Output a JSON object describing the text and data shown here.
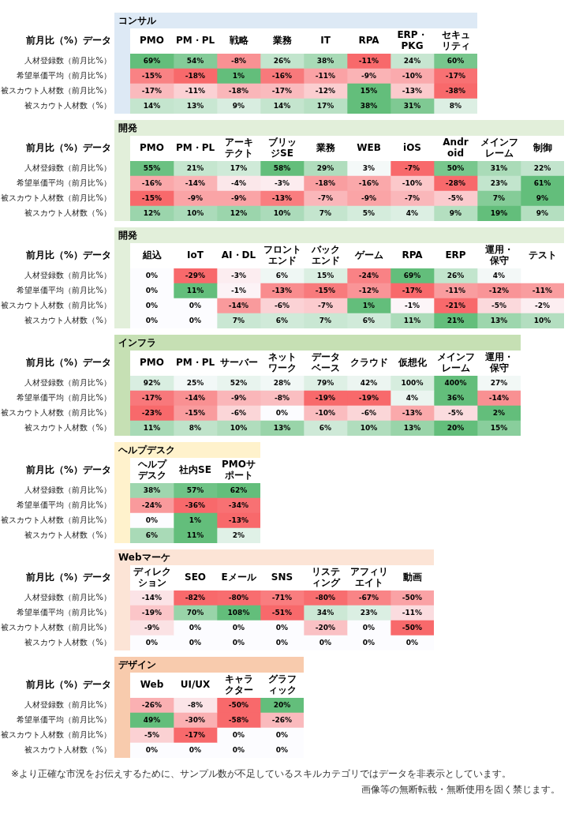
{
  "chart_data": [
    {
      "type": "heatmap",
      "title": "コンサル",
      "ylabel": "前月比（%）データ",
      "color": "#dde9f5",
      "categories": [
        "PMO",
        "PM・PL",
        "戦略",
        "業務",
        "IT",
        "RPA",
        "ERP・PKG",
        "セキュリティ"
      ],
      "y_categories": [
        "人材登録数（前月比%）",
        "希望単価平均（前月比%）",
        "被スカウト人材数（前月比%）",
        "被スカウト人材数（%）"
      ],
      "cells": [
        [
          69,
          54,
          -8,
          26,
          38,
          -11,
          24,
          60
        ],
        [
          -15,
          -18,
          1,
          -16,
          -11,
          -9,
          -10,
          -17
        ],
        [
          -17,
          -11,
          -18,
          -17,
          -12,
          15,
          -13,
          -38
        ],
        [
          14,
          13,
          9,
          14,
          17,
          38,
          31,
          8
        ]
      ],
      "cell_labels": [
        [
          "69%",
          "54%",
          "-8%",
          "26%",
          "38%",
          "-11%",
          "24%",
          "60%"
        ],
        [
          "-15%",
          "-18%",
          "1%",
          "-16%",
          "-11%",
          "-9%",
          "-10%",
          "-17%"
        ],
        [
          "-17%",
          "-11%",
          "-18%",
          "-17%",
          "-12%",
          "15%",
          "-13%",
          "-38%"
        ],
        [
          "14%",
          "13%",
          "9%",
          "14%",
          "17%",
          "38%",
          "31%",
          "8%"
        ]
      ]
    },
    {
      "type": "heatmap",
      "title": "開発",
      "ylabel": "前月比（%）データ",
      "color": "#e2efda",
      "categories": [
        "PMO",
        "PM・PL",
        "アーキテクト",
        "ブリッジSE",
        "業務",
        "WEB",
        "iOS",
        "Android",
        "メインフレーム",
        "制御"
      ],
      "y_categories": [
        "人材登録数（前月比%）",
        "希望単価平均（前月比%）",
        "被スカウト人材数（前月比%）",
        "被スカウト人材数（%）"
      ],
      "cells": [
        [
          55,
          21,
          17,
          58,
          29,
          3,
          -7,
          50,
          31,
          22
        ],
        [
          -16,
          -14,
          -4,
          -3,
          -18,
          -16,
          -10,
          -28,
          23,
          61
        ],
        [
          -15,
          -9,
          -9,
          -13,
          -7,
          -9,
          -7,
          -5,
          7,
          9
        ],
        [
          12,
          10,
          12,
          10,
          7,
          5,
          4,
          9,
          19,
          9
        ]
      ],
      "cell_labels": [
        [
          "55%",
          "21%",
          "17%",
          "58%",
          "29%",
          "3%",
          "-7%",
          "50%",
          "31%",
          "22%"
        ],
        [
          "-16%",
          "-14%",
          "-4%",
          "-3%",
          "-18%",
          "-16%",
          "-10%",
          "-28%",
          "23%",
          "61%"
        ],
        [
          "-15%",
          "-9%",
          "-9%",
          "-13%",
          "-7%",
          "-9%",
          "-7%",
          "-5%",
          "7%",
          "9%"
        ],
        [
          "12%",
          "10%",
          "12%",
          "10%",
          "7%",
          "5%",
          "4%",
          "9%",
          "19%",
          "9%"
        ]
      ]
    },
    {
      "type": "heatmap",
      "title": "開発",
      "ylabel": "前月比（%）データ",
      "color": "#e2efda",
      "categories": [
        "組込",
        "IoT",
        "AI・DL",
        "フロントエンド",
        "バックエンド",
        "ゲーム",
        "RPA",
        "ERP",
        "運用・保守",
        "テスト"
      ],
      "y_categories": [
        "人材登録数（前月比%）",
        "希望単価平均（前月比%）",
        "被スカウト人材数（前月比%）",
        "被スカウト人材数（%）"
      ],
      "cells": [
        [
          0,
          -29,
          -3,
          6,
          15,
          -24,
          69,
          26,
          4,
          null
        ],
        [
          0,
          11,
          -1,
          -13,
          -15,
          -12,
          -17,
          -11,
          -12,
          -11
        ],
        [
          0,
          0,
          -14,
          -6,
          -7,
          1,
          -1,
          -21,
          -5,
          -2
        ],
        [
          0,
          0,
          7,
          6,
          7,
          6,
          11,
          21,
          13,
          10
        ]
      ],
      "cell_labels": [
        [
          "0%",
          "-29%",
          "-3%",
          "6%",
          "15%",
          "-24%",
          "69%",
          "26%",
          "4%",
          null
        ],
        [
          "0%",
          "11%",
          "-1%",
          "-13%",
          "-15%",
          "-12%",
          "-17%",
          "-11%",
          "-12%",
          "-11%"
        ],
        [
          "0%",
          "0%",
          "-14%",
          "-6%",
          "-7%",
          "1%",
          "-1%",
          "-21%",
          "-5%",
          "-2%"
        ],
        [
          "0%",
          "0%",
          "7%",
          "6%",
          "7%",
          "6%",
          "11%",
          "21%",
          "13%",
          "10%"
        ]
      ]
    },
    {
      "type": "heatmap",
      "title": "インフラ",
      "ylabel": "前月比（%）データ",
      "color": "#c6e0b4",
      "categories": [
        "PMO",
        "PM・PL",
        "サーバー",
        "ネットワーク",
        "データベース",
        "クラウド",
        "仮想化",
        "メインフレーム",
        "運用・保守"
      ],
      "y_categories": [
        "人材登録数（前月比%）",
        "希望単価平均（前月比%）",
        "被スカウト人材数（前月比%）",
        "被スカウト人材数（%）"
      ],
      "cells": [
        [
          92,
          25,
          52,
          28,
          79,
          42,
          100,
          400,
          27
        ],
        [
          -17,
          -14,
          -9,
          -8,
          -19,
          -19,
          4,
          36,
          -14
        ],
        [
          -23,
          -15,
          -6,
          0,
          -10,
          -6,
          -13,
          -5,
          2
        ],
        [
          11,
          8,
          10,
          13,
          6,
          10,
          13,
          20,
          15
        ]
      ],
      "cell_labels": [
        [
          "92%",
          "25%",
          "52%",
          "28%",
          "79%",
          "42%",
          "100%",
          "400%",
          "27%"
        ],
        [
          "-17%",
          "-14%",
          "-9%",
          "-8%",
          "-19%",
          "-19%",
          "4%",
          "36%",
          "-14%"
        ],
        [
          "-23%",
          "-15%",
          "-6%",
          "0%",
          "-10%",
          "-6%",
          "-13%",
          "-5%",
          "2%"
        ],
        [
          "11%",
          "8%",
          "10%",
          "13%",
          "6%",
          "10%",
          "13%",
          "20%",
          "15%"
        ]
      ]
    },
    {
      "type": "heatmap",
      "title": "ヘルプデスク",
      "ylabel": "前月比（%）データ",
      "color": "#fff2cc",
      "categories": [
        "ヘルプデスク",
        "社内SE",
        "PMOサポート"
      ],
      "y_categories": [
        "人材登録数（前月比%）",
        "希望単価平均（前月比%）",
        "被スカウト人材数（前月比%）",
        "被スカウト人材数（%）"
      ],
      "cells": [
        [
          38,
          57,
          62
        ],
        [
          -24,
          -36,
          -34
        ],
        [
          0,
          1,
          -13
        ],
        [
          6,
          11,
          2
        ]
      ],
      "cell_labels": [
        [
          "38%",
          "57%",
          "62%"
        ],
        [
          "-24%",
          "-36%",
          "-34%"
        ],
        [
          "0%",
          "1%",
          "-13%"
        ],
        [
          "6%",
          "11%",
          "2%"
        ]
      ]
    },
    {
      "type": "heatmap",
      "title": "Webマーケ",
      "ylabel": "前月比（%）データ",
      "color": "#fce4d6",
      "categories": [
        "ディレクション",
        "SEO",
        "Eメール",
        "SNS",
        "リスティング",
        "アフィリエイト",
        "動画"
      ],
      "y_categories": [
        "人材登録数（前月比%）",
        "希望単価平均（前月比%）",
        "被スカウト人材数（前月比%）",
        "被スカウト人材数（%）"
      ],
      "cells": [
        [
          -14,
          -82,
          -80,
          -71,
          -80,
          -67,
          -50
        ],
        [
          -19,
          70,
          108,
          -51,
          34,
          23,
          -11
        ],
        [
          -9,
          0,
          0,
          0,
          -20,
          0,
          -50
        ],
        [
          0,
          0,
          0,
          0,
          0,
          0,
          0
        ]
      ],
      "cell_labels": [
        [
          "-14%",
          "-82%",
          "-80%",
          "-71%",
          "-80%",
          "-67%",
          "-50%"
        ],
        [
          "-19%",
          "70%",
          "108%",
          "-51%",
          "34%",
          "23%",
          "-11%"
        ],
        [
          "-9%",
          "0%",
          "0%",
          "0%",
          "-20%",
          "0%",
          "-50%"
        ],
        [
          "0%",
          "0%",
          "0%",
          "0%",
          "0%",
          "0%",
          "0%"
        ]
      ]
    },
    {
      "type": "heatmap",
      "title": "デザイン",
      "ylabel": "前月比（%）データ",
      "color": "#f8cbad",
      "categories": [
        "Web",
        "UI/UX",
        "キャラクター",
        "グラフィック"
      ],
      "y_categories": [
        "人材登録数（前月比%）",
        "希望単価平均（前月比%）",
        "被スカウト人材数（前月比%）",
        "被スカウト人材数（%）"
      ],
      "cells": [
        [
          -26,
          -8,
          -50,
          20
        ],
        [
          49,
          -30,
          -58,
          -26
        ],
        [
          -5,
          -17,
          0,
          0
        ],
        [
          0,
          0,
          0,
          0
        ]
      ],
      "cell_labels": [
        [
          "-26%",
          "-8%",
          "-50%",
          "20%"
        ],
        [
          "49%",
          "-30%",
          "-58%",
          "-26%"
        ],
        [
          "-5%",
          "-17%",
          "0%",
          "0%"
        ],
        [
          "0%",
          "0%",
          "0%",
          "0%"
        ]
      ],
      "annotations": [
        "※より正確な市況をお伝えするために、サンプル数が不足しているスキルカテゴリではデータを非表示としています。",
        "画像等の無断転載・無断使用を固く禁じます。"
      ]
    }
  ]
}
